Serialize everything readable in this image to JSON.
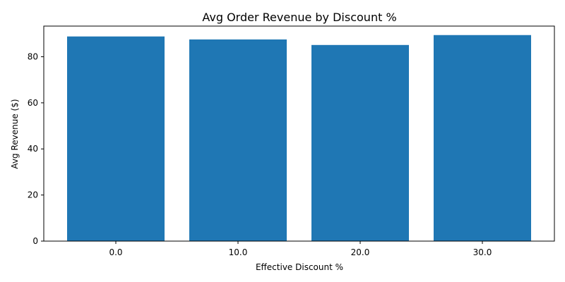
{
  "chart_data": {
    "type": "bar",
    "title": "Avg Order Revenue by Discount %",
    "xlabel": "Effective Discount %",
    "ylabel": "Avg Revenue ($)",
    "categories": [
      "0.0",
      "10.0",
      "20.0",
      "30.0"
    ],
    "values": [
      88.8,
      87.5,
      85.1,
      89.4
    ],
    "ylim": [
      0,
      93.3
    ],
    "yticks": [
      0,
      20,
      40,
      60,
      80
    ],
    "grid": false,
    "legend": "none",
    "bar_color": "#1f77b4"
  }
}
